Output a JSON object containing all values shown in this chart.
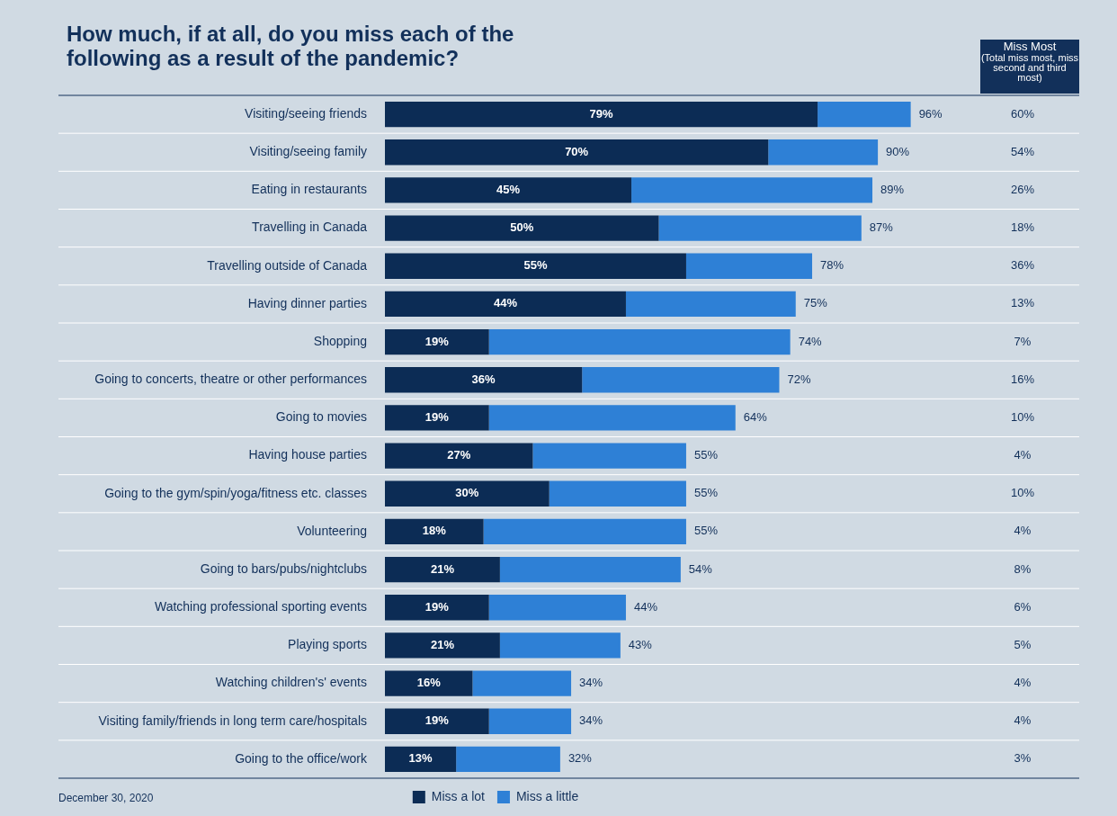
{
  "chart_data": {
    "type": "bar",
    "orientation": "horizontal",
    "stacked": true,
    "title": "How much, if at all, do you miss each of the following as a result of the pandemic?",
    "categories": [
      "Visiting/seeing friends",
      "Visiting/seeing family",
      "Eating in restaurants",
      "Travelling in Canada",
      "Travelling outside of Canada",
      "Having dinner parties",
      "Shopping",
      "Going to concerts, theatre or other performances",
      "Going to movies",
      "Having house parties",
      "Going to the gym/spin/yoga/fitness etc. classes",
      "Volunteering",
      "Going to bars/pubs/nightclubs",
      "Watching professional sporting events",
      "Playing sports",
      "Watching children's' events",
      "Visiting family/friends in long term care/hospitals",
      "Going to the office/work"
    ],
    "series": [
      {
        "name": "Miss a lot",
        "color": "#0c2c55",
        "values": [
          79,
          70,
          45,
          50,
          55,
          44,
          19,
          36,
          19,
          27,
          30,
          18,
          21,
          19,
          21,
          16,
          19,
          13
        ],
        "value_labels": [
          "79%",
          "70%",
          "45%",
          "50%",
          "55%",
          "44%",
          "19%",
          "36%",
          "19%",
          "27%",
          "30%",
          "18%",
          "21%",
          "19%",
          "21%",
          "16%",
          "19%",
          "13%"
        ]
      },
      {
        "name": "Miss a little",
        "color": "#2e80d6",
        "values": [
          17,
          20,
          44,
          37,
          23,
          31,
          55,
          36,
          45,
          28,
          25,
          37,
          33,
          25,
          22,
          18,
          15,
          19
        ]
      }
    ],
    "totals": [
      "96%",
      "90%",
      "89%",
      "87%",
      "78%",
      "75%",
      "74%",
      "72%",
      "64%",
      "55%",
      "55%",
      "55%",
      "54%",
      "44%",
      "43%",
      "34%",
      "34%",
      "32%"
    ],
    "tick_labels": "y",
    "grid": "y",
    "legend": "bottom",
    "annotations": [
      "Miss Most (Total miss most, miss second and third most)",
      "60%",
      "54%",
      "26%",
      "18%",
      "36%",
      "13%",
      "7%",
      "16%",
      "10%",
      "4%",
      "10%",
      "4%",
      "8%",
      "6%",
      "5%",
      "4%",
      "4%",
      "3%",
      "December 30, 2020"
    ]
  }
}
